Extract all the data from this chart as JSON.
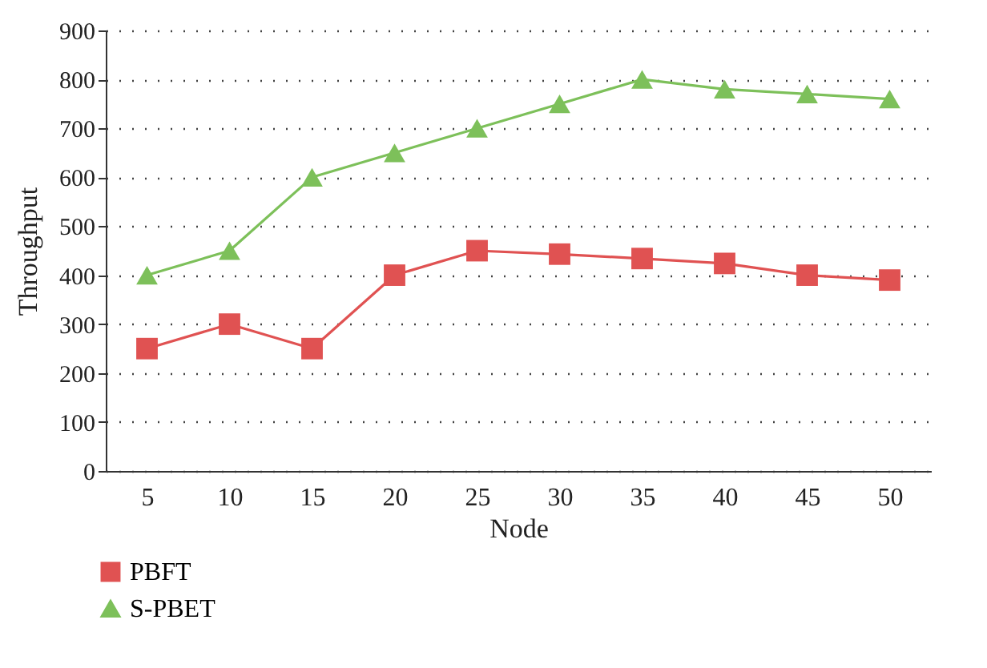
{
  "chart_data": {
    "type": "line",
    "xlabel": "Node",
    "ylabel": "Throughput",
    "categories": [
      "5",
      "10",
      "15",
      "20",
      "25",
      "30",
      "35",
      "40",
      "45",
      "50"
    ],
    "series": [
      {
        "name": "PBFT",
        "color": "#e05252",
        "marker": "square",
        "values": [
          250,
          300,
          250,
          400,
          450,
          443,
          434,
          424,
          400,
          390
        ]
      },
      {
        "name": "S-PBET",
        "color": "#7dc05a",
        "marker": "triangle",
        "values": [
          400,
          450,
          600,
          650,
          700,
          750,
          800,
          780,
          770,
          760
        ]
      }
    ],
    "ylim": [
      0,
      900
    ],
    "yticks": [
      0,
      100,
      200,
      300,
      400,
      500,
      600,
      700,
      800,
      900
    ],
    "grid": "y",
    "legend": "bottom left",
    "line_style": "solid"
  }
}
